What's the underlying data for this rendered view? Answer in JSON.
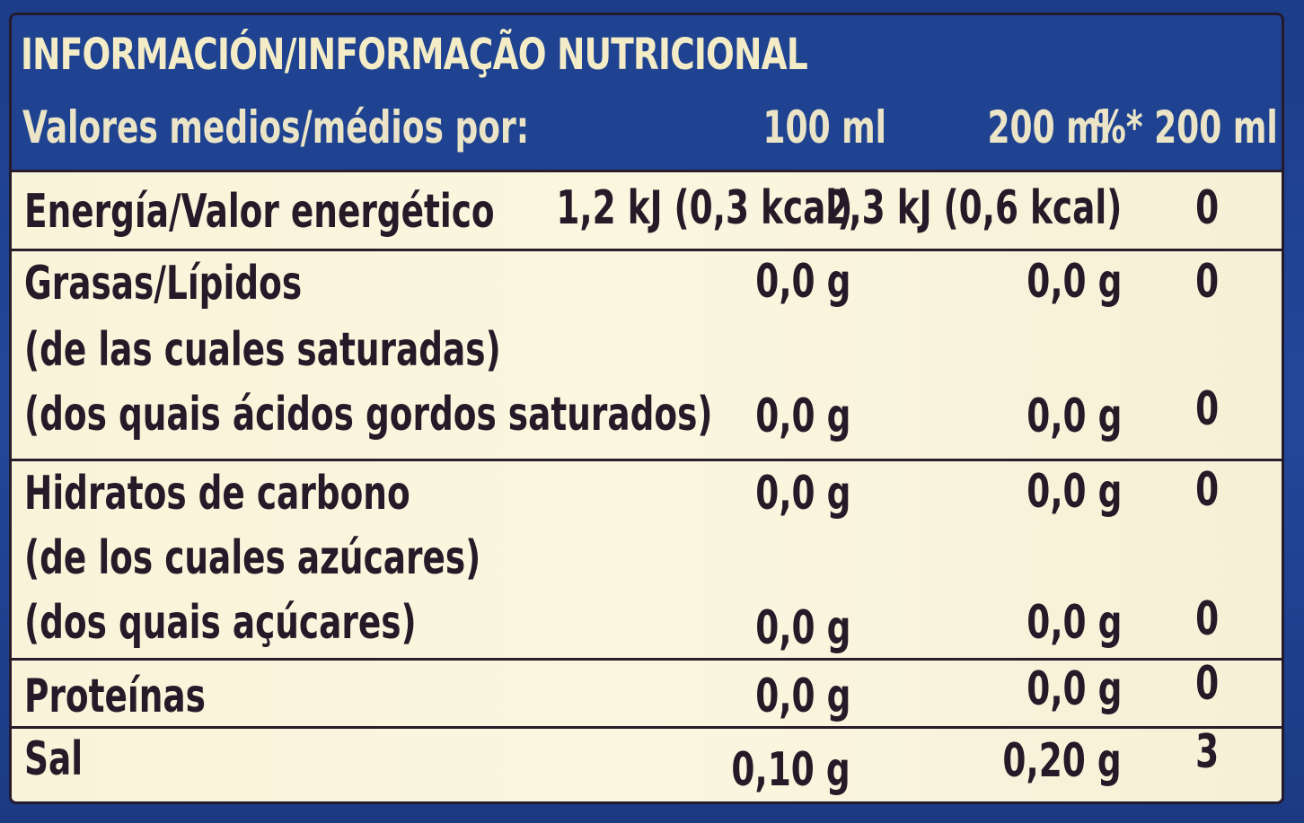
{
  "title": "INFORMACIÓN/INFORMAÇÃO NUTRICIONAL",
  "columns": {
    "label": "Valores medios/médios por:",
    "per_100": "100 ml",
    "per_200": "200 ml",
    "pct_200": "%* 200 ml"
  },
  "rows": [
    {
      "name": "Energía/Valor energético",
      "v100": "1,2 kJ (0,3 kcal)",
      "v200": "2,3 kJ (0,6 kcal)",
      "pct": "0"
    },
    {
      "name": "Grasas/Lípidos",
      "v100": "0,0 g",
      "v200": "0,0 g",
      "pct": "0"
    },
    {
      "name": "(de las cuales saturadas)",
      "v100": "",
      "v200": "",
      "pct": ""
    },
    {
      "name": "(dos quais ácidos gordos saturados)",
      "v100": "0,0 g",
      "v200": "0,0 g",
      "pct": "0"
    },
    {
      "name": "Hidratos de carbono",
      "v100": "0,0 g",
      "v200": "0,0 g",
      "pct": "0"
    },
    {
      "name": "(de los cuales azúcares)",
      "v100": "",
      "v200": "",
      "pct": ""
    },
    {
      "name": "(dos quais açúcares)",
      "v100": "0,0 g",
      "v200": "0,0 g",
      "pct": "0"
    },
    {
      "name": "Proteínas",
      "v100": "0,0 g",
      "v200": "0,0 g",
      "pct": "0"
    },
    {
      "name": "Sal",
      "v100": "0,10 g",
      "v200": "0,20 g",
      "pct": "3"
    }
  ]
}
